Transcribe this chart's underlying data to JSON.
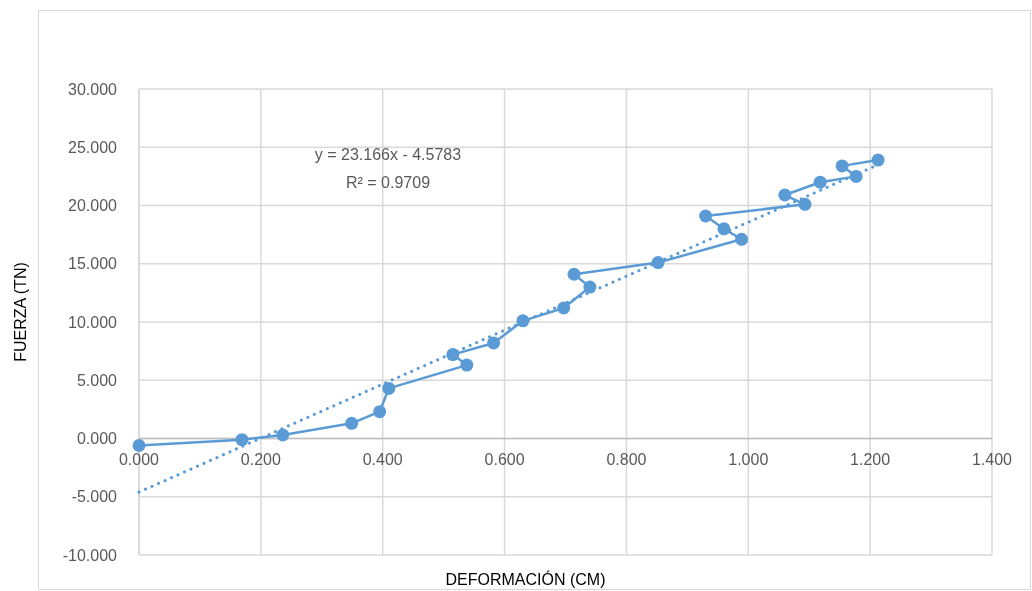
{
  "chart_data": {
    "type": "line",
    "xlabel": "DEFORMACIÓN (CM)",
    "ylabel": "FUERZA (TN)",
    "annotations": [
      "y = 23.166x - 4.5783",
      "R² = 0.9709"
    ],
    "xlim": [
      0,
      1.4
    ],
    "ylim": [
      -10,
      30
    ],
    "xticks": [
      {
        "value": 0,
        "label": "0.000"
      },
      {
        "value": 0.2,
        "label": "0.200"
      },
      {
        "value": 0.4,
        "label": "0.400"
      },
      {
        "value": 0.6,
        "label": "0.600"
      },
      {
        "value": 0.8,
        "label": "0.800"
      },
      {
        "value": 1,
        "label": "1.000"
      },
      {
        "value": 1.2,
        "label": "1.200"
      },
      {
        "value": 1.4,
        "label": "1.400"
      }
    ],
    "yticks": [
      {
        "value": -10,
        "label": "-10.000"
      },
      {
        "value": -5,
        "label": "-5.000"
      },
      {
        "value": 0,
        "label": "0.000"
      },
      {
        "value": 5,
        "label": "5.000"
      },
      {
        "value": 10,
        "label": "10.000"
      },
      {
        "value": 15,
        "label": "15.000"
      },
      {
        "value": 20,
        "label": "20.000"
      },
      {
        "value": 25,
        "label": "25.000"
      },
      {
        "value": 30,
        "label": "30.000"
      }
    ],
    "grid": true,
    "series": [
      {
        "color": "#5b9bd5",
        "marker": "circle",
        "line_style": "solid",
        "x": [
          0,
          0.169,
          0.236,
          0.349,
          0.395,
          0.41,
          0.538,
          0.515,
          0.582,
          0.63,
          0.697,
          0.74,
          0.714,
          0.852,
          0.989,
          0.96,
          0.93,
          1.093,
          1.06,
          1.118,
          1.177,
          1.154,
          1.213
        ],
        "values": [
          -0.6,
          -0.1,
          0.3,
          1.3,
          2.3,
          4.3,
          6.3,
          7.2,
          8.2,
          10.1,
          11.2,
          13.0,
          14.1,
          15.1,
          17.1,
          18.0,
          19.1,
          20.1,
          20.9,
          22.0,
          22.5,
          23.4,
          23.9
        ]
      },
      {
        "color": "#5b9bd5",
        "marker": "none",
        "line_style": "dotted",
        "x": [
          0,
          1.213
        ],
        "values": [
          -4.6,
          23.5
        ]
      }
    ]
  }
}
